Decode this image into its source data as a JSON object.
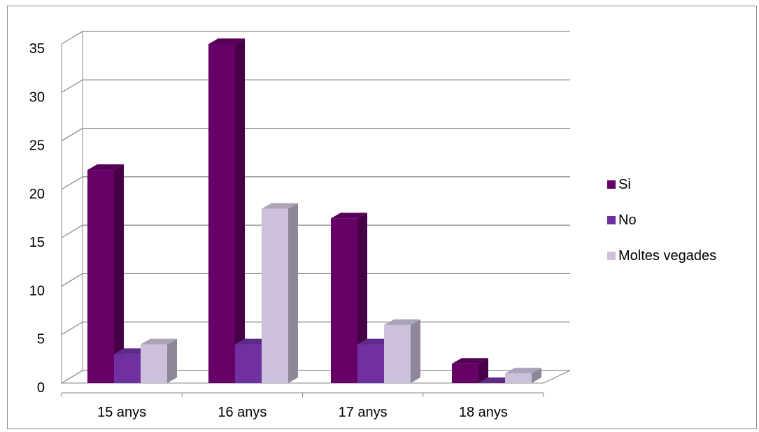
{
  "chart_data": {
    "type": "bar",
    "title": "",
    "xlabel": "",
    "ylabel": "",
    "categories": [
      "15 anys",
      "16 anys",
      "17 anys",
      "18 anys"
    ],
    "series": [
      {
        "name": "Si",
        "values": [
          22,
          35,
          17,
          2
        ],
        "color": "#660066"
      },
      {
        "name": "No",
        "values": [
          3,
          4,
          4,
          0
        ],
        "color": "#7030a0"
      },
      {
        "name": "Moltes vegades",
        "values": [
          4,
          18,
          6,
          1
        ],
        "color": "#ccc0da"
      }
    ],
    "ylim": [
      0,
      35
    ],
    "yticks": [
      "0",
      "5",
      "10",
      "15",
      "20",
      "25",
      "30",
      "35"
    ],
    "grid": true,
    "legend_position": "right",
    "style": "3d-clustered-column"
  }
}
